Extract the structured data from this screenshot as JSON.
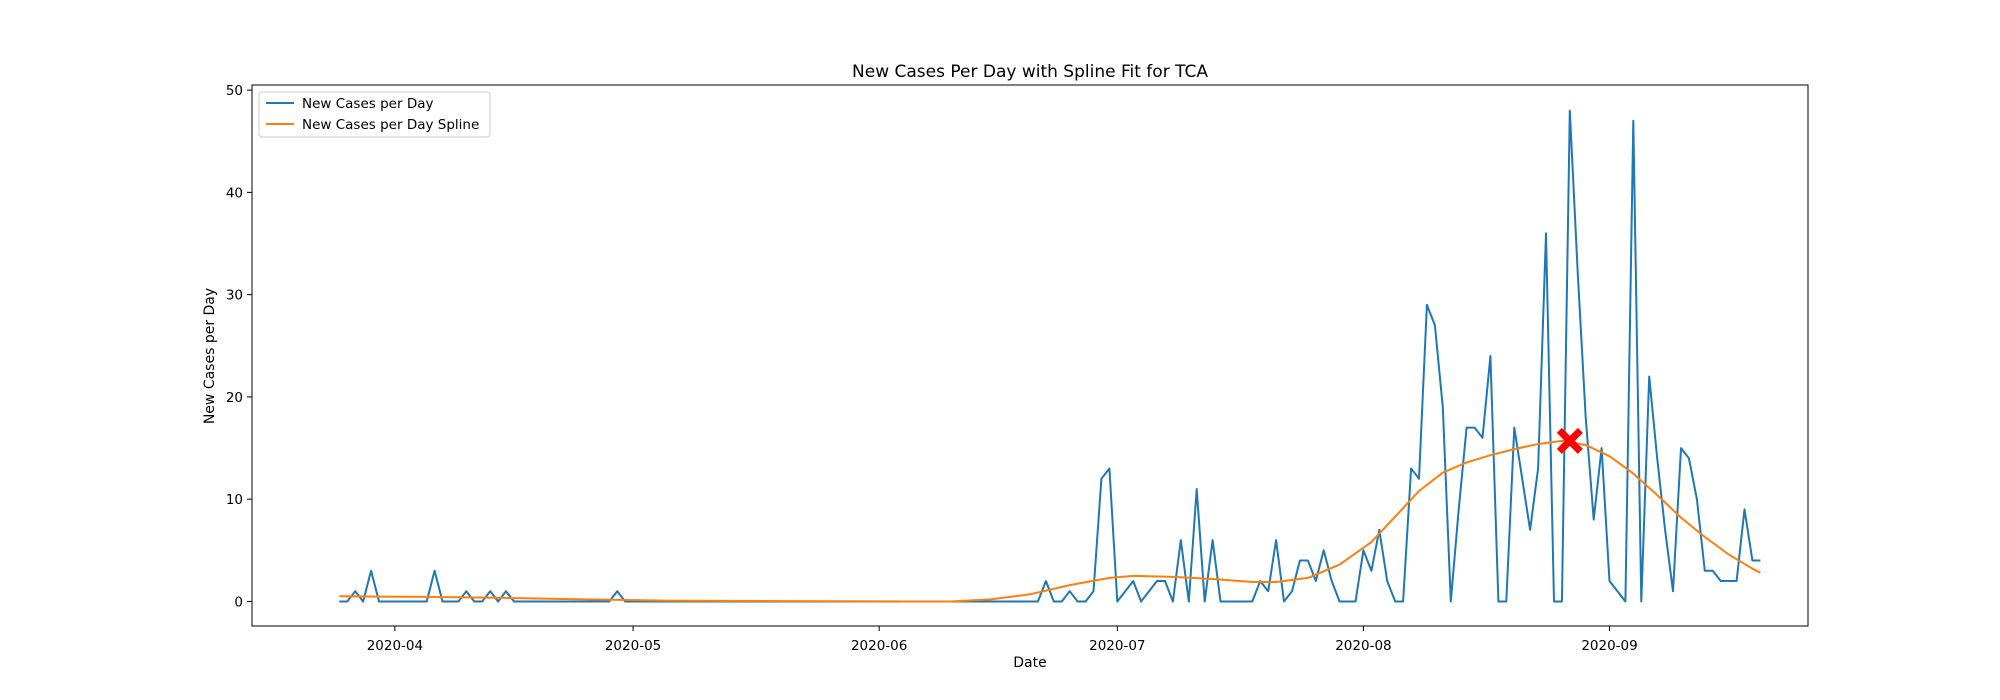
{
  "chart_data": {
    "type": "line",
    "title": "New Cases Per Day with Spline Fit for TCA",
    "xlabel": "Date",
    "ylabel": "New Cases per Day",
    "x_ticks": [
      "2020-04",
      "2020-05",
      "2020-06",
      "2020-07",
      "2020-08",
      "2020-09"
    ],
    "y_ticks": [
      0,
      10,
      20,
      30,
      40,
      50
    ],
    "xlim": [
      "2020-03-14",
      "2020-09-26"
    ],
    "ylim": [
      -2.4,
      50.5
    ],
    "grid": false,
    "legend_position": "top-left",
    "series": [
      {
        "name": "New Cases per Day",
        "color": "#1f77b4",
        "points": [
          [
            "2020-03-25",
            0
          ],
          [
            "2020-03-26",
            0
          ],
          [
            "2020-03-27",
            1
          ],
          [
            "2020-03-28",
            0
          ],
          [
            "2020-03-29",
            3
          ],
          [
            "2020-03-30",
            0
          ],
          [
            "2020-04-05",
            0
          ],
          [
            "2020-04-06",
            3
          ],
          [
            "2020-04-07",
            0
          ],
          [
            "2020-04-09",
            0
          ],
          [
            "2020-04-10",
            1
          ],
          [
            "2020-04-11",
            0
          ],
          [
            "2020-04-12",
            0
          ],
          [
            "2020-04-13",
            1
          ],
          [
            "2020-04-14",
            0
          ],
          [
            "2020-04-15",
            1
          ],
          [
            "2020-04-16",
            0
          ],
          [
            "2020-04-28",
            0
          ],
          [
            "2020-04-29",
            1
          ],
          [
            "2020-04-30",
            0
          ],
          [
            "2020-06-20",
            0
          ],
          [
            "2020-06-21",
            0
          ],
          [
            "2020-06-22",
            2
          ],
          [
            "2020-06-23",
            0
          ],
          [
            "2020-06-24",
            0
          ],
          [
            "2020-06-25",
            1
          ],
          [
            "2020-06-26",
            0
          ],
          [
            "2020-06-27",
            0
          ],
          [
            "2020-06-28",
            1
          ],
          [
            "2020-06-29",
            12
          ],
          [
            "2020-06-30",
            13
          ],
          [
            "2020-07-01",
            0
          ],
          [
            "2020-07-03",
            2
          ],
          [
            "2020-07-04",
            0
          ],
          [
            "2020-07-06",
            2
          ],
          [
            "2020-07-07",
            2
          ],
          [
            "2020-07-08",
            0
          ],
          [
            "2020-07-09",
            6
          ],
          [
            "2020-07-10",
            0
          ],
          [
            "2020-07-11",
            11
          ],
          [
            "2020-07-12",
            0
          ],
          [
            "2020-07-13",
            6
          ],
          [
            "2020-07-14",
            0
          ],
          [
            "2020-07-15",
            0
          ],
          [
            "2020-07-18",
            0
          ],
          [
            "2020-07-19",
            2
          ],
          [
            "2020-07-20",
            1
          ],
          [
            "2020-07-21",
            6
          ],
          [
            "2020-07-22",
            0
          ],
          [
            "2020-07-23",
            1
          ],
          [
            "2020-07-24",
            4
          ],
          [
            "2020-07-25",
            4
          ],
          [
            "2020-07-26",
            2
          ],
          [
            "2020-07-27",
            5
          ],
          [
            "2020-07-28",
            2
          ],
          [
            "2020-07-29",
            0
          ],
          [
            "2020-07-30",
            0
          ],
          [
            "2020-07-31",
            0
          ],
          [
            "2020-08-01",
            5
          ],
          [
            "2020-08-02",
            3
          ],
          [
            "2020-08-03",
            7
          ],
          [
            "2020-08-04",
            2
          ],
          [
            "2020-08-05",
            0
          ],
          [
            "2020-08-06",
            0
          ],
          [
            "2020-08-07",
            13
          ],
          [
            "2020-08-08",
            12
          ],
          [
            "2020-08-09",
            29
          ],
          [
            "2020-08-10",
            27
          ],
          [
            "2020-08-11",
            19
          ],
          [
            "2020-08-12",
            0
          ],
          [
            "2020-08-13",
            9
          ],
          [
            "2020-08-14",
            17
          ],
          [
            "2020-08-15",
            17
          ],
          [
            "2020-08-16",
            16
          ],
          [
            "2020-08-17",
            24
          ],
          [
            "2020-08-18",
            0
          ],
          [
            "2020-08-19",
            0
          ],
          [
            "2020-08-20",
            17
          ],
          [
            "2020-08-21",
            12
          ],
          [
            "2020-08-22",
            7
          ],
          [
            "2020-08-23",
            13
          ],
          [
            "2020-08-24",
            36
          ],
          [
            "2020-08-25",
            0
          ],
          [
            "2020-08-26",
            0
          ],
          [
            "2020-08-27",
            48
          ],
          [
            "2020-08-28",
            32
          ],
          [
            "2020-08-29",
            18
          ],
          [
            "2020-08-30",
            8
          ],
          [
            "2020-08-31",
            15
          ],
          [
            "2020-09-01",
            2
          ],
          [
            "2020-09-03",
            0
          ],
          [
            "2020-09-04",
            47
          ],
          [
            "2020-09-05",
            0
          ],
          [
            "2020-09-06",
            22
          ],
          [
            "2020-09-07",
            14
          ],
          [
            "2020-09-08",
            7
          ],
          [
            "2020-09-09",
            1
          ],
          [
            "2020-09-10",
            15
          ],
          [
            "2020-09-11",
            14
          ],
          [
            "2020-09-12",
            10
          ],
          [
            "2020-09-13",
            3
          ],
          [
            "2020-09-14",
            3
          ],
          [
            "2020-09-15",
            2
          ],
          [
            "2020-09-17",
            2
          ],
          [
            "2020-09-18",
            9
          ],
          [
            "2020-09-19",
            4
          ],
          [
            "2020-09-20",
            4
          ]
        ]
      },
      {
        "name": "New Cases per Day Spline",
        "color": "#ff7f0e",
        "points": [
          [
            "2020-03-25",
            0.5
          ],
          [
            "2020-04-05",
            0.45
          ],
          [
            "2020-04-15",
            0.35
          ],
          [
            "2020-04-25",
            0.2
          ],
          [
            "2020-05-05",
            0.08
          ],
          [
            "2020-05-20",
            0.03
          ],
          [
            "2020-06-05",
            0.0
          ],
          [
            "2020-06-10",
            0.0
          ],
          [
            "2020-06-15",
            0.2
          ],
          [
            "2020-06-20",
            0.7
          ],
          [
            "2020-06-25",
            1.6
          ],
          [
            "2020-06-30",
            2.3
          ],
          [
            "2020-07-03",
            2.5
          ],
          [
            "2020-07-08",
            2.4
          ],
          [
            "2020-07-13",
            2.2
          ],
          [
            "2020-07-18",
            1.9
          ],
          [
            "2020-07-21",
            1.9
          ],
          [
            "2020-07-25",
            2.3
          ],
          [
            "2020-07-29",
            3.6
          ],
          [
            "2020-08-02",
            5.8
          ],
          [
            "2020-08-05",
            8.3
          ],
          [
            "2020-08-08",
            10.8
          ],
          [
            "2020-08-11",
            12.6
          ],
          [
            "2020-08-14",
            13.6
          ],
          [
            "2020-08-17",
            14.3
          ],
          [
            "2020-08-20",
            14.9
          ],
          [
            "2020-08-23",
            15.4
          ],
          [
            "2020-08-26",
            15.7
          ],
          [
            "2020-08-29",
            15.3
          ],
          [
            "2020-09-01",
            14.2
          ],
          [
            "2020-09-04",
            12.5
          ],
          [
            "2020-09-07",
            10.4
          ],
          [
            "2020-09-10",
            8.2
          ],
          [
            "2020-09-13",
            6.3
          ],
          [
            "2020-09-16",
            4.6
          ],
          [
            "2020-09-19",
            3.2
          ],
          [
            "2020-09-20",
            2.8
          ]
        ]
      }
    ],
    "peak_marker": {
      "x": "2020-08-27",
      "y": 15.7,
      "color": "#ff0000",
      "shape": "X"
    }
  }
}
